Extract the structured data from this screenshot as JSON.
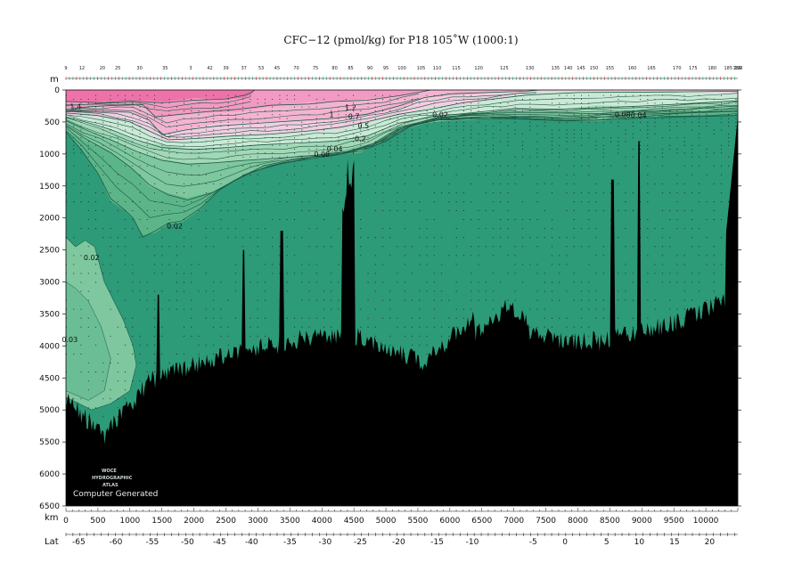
{
  "chart_data": {
    "type": "section-contour",
    "title": "CFC−12 (pmol/kg) for P18 105˚W (1000:1)",
    "ylabel_unit": "m",
    "xlabel_unit": "km",
    "lat_label": "Lat",
    "x_range": [
      0,
      10500
    ],
    "y_range": [
      0,
      6500
    ],
    "depth_ticks": [
      0,
      500,
      1000,
      1500,
      2000,
      2500,
      3000,
      3500,
      4000,
      4500,
      5000,
      5500,
      6000,
      6500
    ],
    "km_ticks": [
      0,
      500,
      1000,
      1500,
      2000,
      2500,
      3000,
      3500,
      4000,
      4500,
      5000,
      5500,
      6000,
      6500,
      7000,
      7500,
      8000,
      8500,
      9000,
      9500,
      10000
    ],
    "lat_ticks": [
      {
        "km": 200,
        "label": "-65"
      },
      {
        "km": 780,
        "label": "-60"
      },
      {
        "km": 1350,
        "label": "-55"
      },
      {
        "km": 1900,
        "label": "-50"
      },
      {
        "km": 2400,
        "label": "-45"
      },
      {
        "km": 2900,
        "label": "-40"
      },
      {
        "km": 3500,
        "label": "-35"
      },
      {
        "km": 4050,
        "label": "-30"
      },
      {
        "km": 4600,
        "label": "-25"
      },
      {
        "km": 5200,
        "label": "-20"
      },
      {
        "km": 5800,
        "label": "-15"
      },
      {
        "km": 6350,
        "label": "-10"
      },
      {
        "km": 7300,
        "label": "-5"
      },
      {
        "km": 7800,
        "label": "0"
      },
      {
        "km": 8450,
        "label": "5"
      },
      {
        "km": 8960,
        "label": "10"
      },
      {
        "km": 9510,
        "label": "15"
      },
      {
        "km": 10060,
        "label": "20"
      }
    ],
    "station_labels": [
      {
        "km": 0,
        "label": "9"
      },
      {
        "km": 250,
        "label": "12"
      },
      {
        "km": 570,
        "label": "20"
      },
      {
        "km": 810,
        "label": "25"
      },
      {
        "km": 1150,
        "label": "30"
      },
      {
        "km": 1550,
        "label": "35"
      },
      {
        "km": 1950,
        "label": "3"
      },
      {
        "km": 2250,
        "label": "42"
      },
      {
        "km": 2500,
        "label": "39"
      },
      {
        "km": 2780,
        "label": "37"
      },
      {
        "km": 3050,
        "label": "53"
      },
      {
        "km": 3300,
        "label": "45"
      },
      {
        "km": 3600,
        "label": "70"
      },
      {
        "km": 3900,
        "label": "75"
      },
      {
        "km": 4200,
        "label": "80"
      },
      {
        "km": 4450,
        "label": "85"
      },
      {
        "km": 4750,
        "label": "90"
      },
      {
        "km": 5000,
        "label": "95"
      },
      {
        "km": 5250,
        "label": "100"
      },
      {
        "km": 5550,
        "label": "105"
      },
      {
        "km": 5800,
        "label": "110"
      },
      {
        "km": 6100,
        "label": "115"
      },
      {
        "km": 6450,
        "label": "120"
      },
      {
        "km": 6850,
        "label": "125"
      },
      {
        "km": 7250,
        "label": "130"
      },
      {
        "km": 7650,
        "label": "135"
      },
      {
        "km": 7850,
        "label": "140"
      },
      {
        "km": 8050,
        "label": "145"
      },
      {
        "km": 8250,
        "label": "150"
      },
      {
        "km": 8500,
        "label": "155"
      },
      {
        "km": 8850,
        "label": "160"
      },
      {
        "km": 9150,
        "label": "165"
      },
      {
        "km": 9550,
        "label": "170"
      },
      {
        "km": 9800,
        "label": "175"
      },
      {
        "km": 10100,
        "label": "180"
      },
      {
        "km": 10350,
        "label": "185"
      },
      {
        "km": 10490,
        "label": "189"
      },
      {
        "km": 10510,
        "label": "190"
      }
    ],
    "contour_labels": [
      {
        "km": 150,
        "depth": 260,
        "label": "1.4"
      },
      {
        "km": 4450,
        "depth": 270,
        "label": "1.2"
      },
      {
        "km": 4150,
        "depth": 380,
        "label": "1"
      },
      {
        "km": 4500,
        "depth": 410,
        "label": "0.7"
      },
      {
        "km": 4650,
        "depth": 560,
        "label": "0.5"
      },
      {
        "km": 4600,
        "depth": 760,
        "label": "0.2"
      },
      {
        "km": 4000,
        "depth": 1000,
        "label": "0.08"
      },
      {
        "km": 4200,
        "depth": 920,
        "label": "0.04"
      },
      {
        "km": 5850,
        "depth": 380,
        "label": "0.02"
      },
      {
        "km": 8700,
        "depth": 380,
        "label": "0.08"
      },
      {
        "km": 8950,
        "depth": 390,
        "label": "0.04"
      },
      {
        "km": 1700,
        "depth": 2120,
        "label": "0.02"
      },
      {
        "km": 400,
        "depth": 2620,
        "label": "0.02"
      },
      {
        "km": 60,
        "depth": 3900,
        "label": "0.03"
      },
      {
        "km": 10470,
        "depth": 4020,
        "label": "0"
      }
    ],
    "levels": [
      1.4,
      1.2,
      1,
      0.7,
      0.5,
      0.2,
      0.08,
      0.04,
      0.02,
      0
    ],
    "color_scale": {
      "1.4": "#ee72aa",
      "1.2": "#f29ac3",
      "1.0": "#f4b3d2",
      "0.7": "#f2cde1",
      "0.5": "#cbe9d6",
      "0.2": "#a2d7b7",
      "0.08": "#7ec79f",
      "0.04": "#5cb589",
      "0.02": "#3aa37b",
      "0": "#2d9a78"
    },
    "bathymetry_color": "#000000",
    "annotations": [
      "WOCE",
      "HYDROGRAPHIC",
      "ATLAS",
      "Computer Generated"
    ]
  }
}
